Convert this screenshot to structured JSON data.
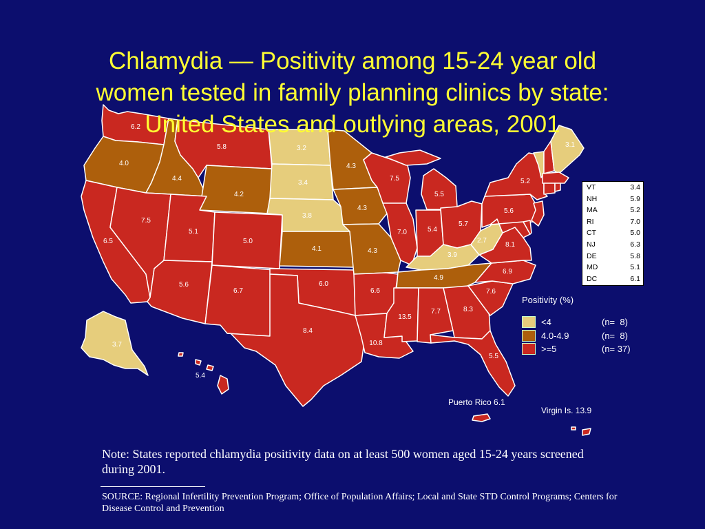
{
  "title": {
    "line1": "Chlamydia — Positivity among 15-24 year old",
    "line2": "women tested in family planning clinics by state:",
    "line3": "United States and outlying areas, 2001"
  },
  "colors": {
    "background": "#0c0e6e",
    "title": "#ffff33",
    "category_low": "#e6cd7c",
    "category_mid": "#ad5f0c",
    "category_high": "#c92820",
    "state_border": "#ffffff"
  },
  "states": {
    "WA": "6.2",
    "OR": "4.0",
    "CA": "6.5",
    "ID": "4.4",
    "NV": "7.5",
    "MT": "5.8",
    "WY": "4.2",
    "UT": "5.1",
    "AZ": "5.6",
    "CO": "5.0",
    "NM": "6.7",
    "ND": "3.2",
    "SD": "3.4",
    "NE": "3.8",
    "KS": "4.1",
    "OK": "6.0",
    "TX": "8.4",
    "MN": "4.3",
    "IA": "4.3",
    "MO": "4.3",
    "AR": "6.6",
    "LA": "10.8",
    "WI": "7.5",
    "IL": "7.0",
    "MS": "13.5",
    "MI": "5.5",
    "IN": "5.4",
    "KY": "3.9",
    "TN": "4.9",
    "AL": "7.7",
    "OH": "5.7",
    "WV": "2.7",
    "GA": "8.3",
    "FL": "5.5",
    "SC": "7.6",
    "NC": "6.9",
    "VA": "8.1",
    "PA": "5.6",
    "NY": "5.2",
    "ME": "3.1",
    "AK": "3.7",
    "HI": "5.4"
  },
  "inset_table": [
    {
      "state": "VT",
      "value": "3.4"
    },
    {
      "state": "NH",
      "value": "5.9"
    },
    {
      "state": "MA",
      "value": "5.2"
    },
    {
      "state": "RI",
      "value": "7.0"
    },
    {
      "state": "CT",
      "value": "5.0"
    },
    {
      "state": "NJ",
      "value": "6.3"
    },
    {
      "state": "DE",
      "value": "5.8"
    },
    {
      "state": "MD",
      "value": "5.1"
    },
    {
      "state": "DC",
      "value": "6.1"
    }
  ],
  "legend": {
    "title": "Positivity (%)",
    "items": [
      {
        "label": "<4",
        "count": "(n=  8)",
        "color": "#e6cd7c"
      },
      {
        "label": "4.0-4.9",
        "count": "(n=  8)",
        "color": "#ad5f0c"
      },
      {
        "label": ">=5",
        "count": "(n= 37)",
        "color": "#c92820"
      }
    ]
  },
  "territories": {
    "puerto_rico": "Puerto Rico 6.1",
    "virgin_islands": "Virgin Is.  13.9"
  },
  "note": "Note:  States reported chlamydia positivity data on at least 500 women aged 15-24 years screened during 2001.",
  "source": "SOURCE: Regional Infertility Prevention Program; Office of Population Affairs; Local and State STD Control Programs; Centers for Disease Control and Prevention"
}
